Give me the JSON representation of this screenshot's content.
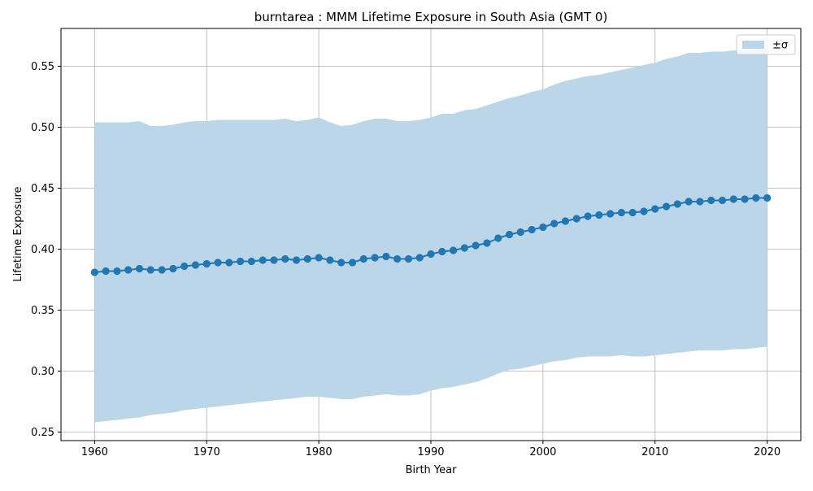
{
  "chart_data": {
    "type": "line",
    "title": "burntarea : MMM Lifetime Exposure in South Asia (GMT 0)",
    "xlabel": "Birth Year",
    "ylabel": "Lifetime Exposure",
    "xlim": [
      1957,
      2023
    ],
    "ylim": [
      0.243,
      0.581
    ],
    "xticks": [
      1960,
      1970,
      1980,
      1990,
      2000,
      2010,
      2020
    ],
    "xtick_labels": [
      "1960",
      "1970",
      "1980",
      "1990",
      "2000",
      "2010",
      "2020"
    ],
    "yticks": [
      0.25,
      0.3,
      0.35,
      0.4,
      0.45,
      0.5,
      0.55
    ],
    "ytick_labels": [
      "0.25",
      "0.30",
      "0.35",
      "0.40",
      "0.45",
      "0.50",
      "0.55"
    ],
    "grid": true,
    "legend_position": "top-right",
    "colors": {
      "line": "#1f77b4",
      "band": "#bcd6e9",
      "grid": "#b0b0b0"
    },
    "x": [
      1960,
      1961,
      1962,
      1963,
      1964,
      1965,
      1966,
      1967,
      1968,
      1969,
      1970,
      1971,
      1972,
      1973,
      1974,
      1975,
      1976,
      1977,
      1978,
      1979,
      1980,
      1981,
      1982,
      1983,
      1984,
      1985,
      1986,
      1987,
      1988,
      1989,
      1990,
      1991,
      1992,
      1993,
      1994,
      1995,
      1996,
      1997,
      1998,
      1999,
      2000,
      2001,
      2002,
      2003,
      2004,
      2005,
      2006,
      2007,
      2008,
      2009,
      2010,
      2011,
      2012,
      2013,
      2014,
      2015,
      2016,
      2017,
      2018,
      2019,
      2020
    ],
    "series": [
      {
        "values": [
          0.381,
          0.382,
          0.382,
          0.383,
          0.384,
          0.383,
          0.383,
          0.384,
          0.386,
          0.387,
          0.388,
          0.389,
          0.389,
          0.39,
          0.39,
          0.391,
          0.391,
          0.392,
          0.391,
          0.392,
          0.393,
          0.391,
          0.389,
          0.389,
          0.392,
          0.393,
          0.394,
          0.392,
          0.392,
          0.393,
          0.396,
          0.398,
          0.399,
          0.401,
          0.403,
          0.405,
          0.409,
          0.412,
          0.414,
          0.416,
          0.418,
          0.421,
          0.423,
          0.425,
          0.427,
          0.428,
          0.429,
          0.43,
          0.43,
          0.431,
          0.433,
          0.435,
          0.437,
          0.439,
          0.439,
          0.44,
          0.44,
          0.441,
          0.441,
          0.442,
          0.442
        ],
        "upper": [
          0.504,
          0.504,
          0.504,
          0.504,
          0.505,
          0.501,
          0.501,
          0.502,
          0.504,
          0.505,
          0.505,
          0.506,
          0.506,
          0.506,
          0.506,
          0.506,
          0.506,
          0.507,
          0.505,
          0.506,
          0.508,
          0.504,
          0.501,
          0.502,
          0.505,
          0.507,
          0.507,
          0.505,
          0.505,
          0.506,
          0.508,
          0.511,
          0.511,
          0.514,
          0.515,
          0.518,
          0.521,
          0.524,
          0.526,
          0.529,
          0.531,
          0.535,
          0.538,
          0.54,
          0.542,
          0.543,
          0.545,
          0.547,
          0.549,
          0.551,
          0.553,
          0.556,
          0.558,
          0.561,
          0.561,
          0.562,
          0.562,
          0.563,
          0.563,
          0.564,
          0.565
        ],
        "lower": [
          0.258,
          0.259,
          0.26,
          0.261,
          0.262,
          0.264,
          0.265,
          0.266,
          0.268,
          0.269,
          0.27,
          0.271,
          0.272,
          0.273,
          0.274,
          0.275,
          0.276,
          0.277,
          0.278,
          0.279,
          0.279,
          0.278,
          0.277,
          0.277,
          0.279,
          0.28,
          0.281,
          0.28,
          0.28,
          0.281,
          0.284,
          0.286,
          0.287,
          0.289,
          0.291,
          0.294,
          0.298,
          0.301,
          0.302,
          0.304,
          0.306,
          0.308,
          0.309,
          0.311,
          0.312,
          0.312,
          0.312,
          0.313,
          0.312,
          0.312,
          0.313,
          0.314,
          0.315,
          0.316,
          0.317,
          0.317,
          0.317,
          0.318,
          0.318,
          0.319,
          0.32
        ]
      }
    ],
    "legend": [
      {
        "label": "±σ",
        "kind": "band"
      }
    ]
  }
}
